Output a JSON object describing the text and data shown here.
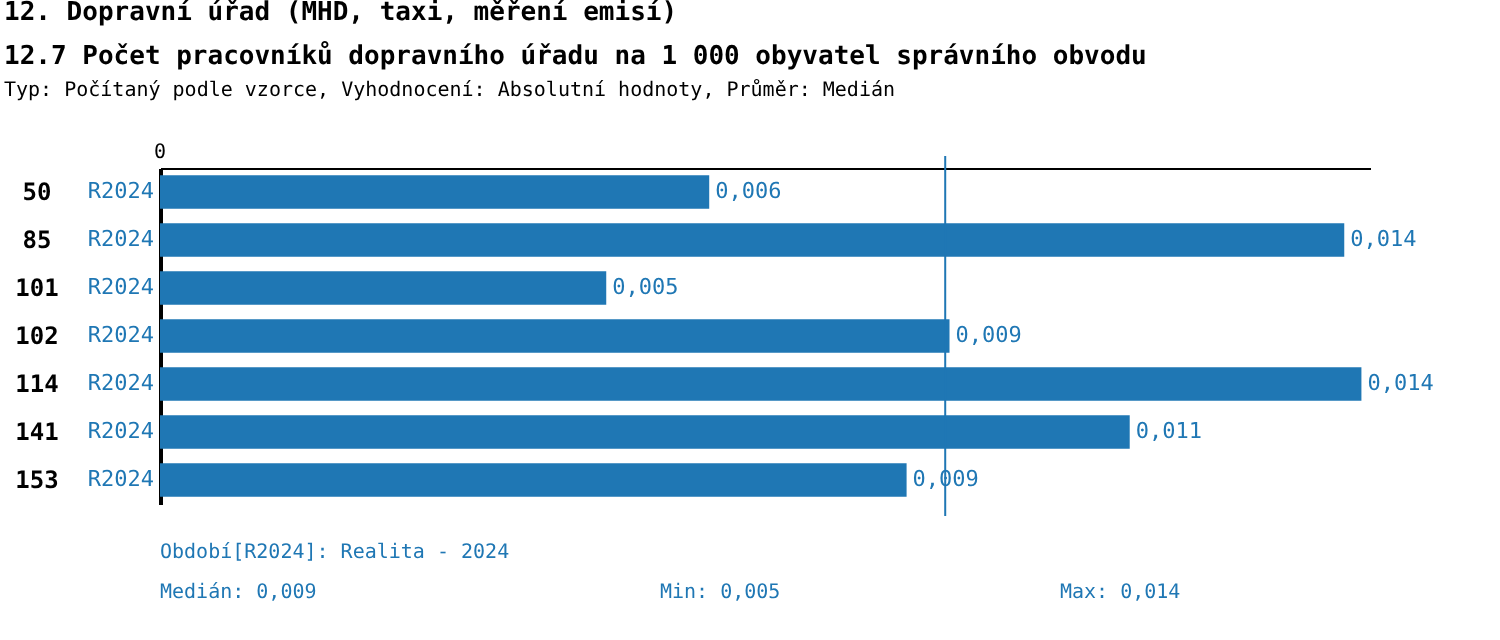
{
  "chart_data": {
    "type": "bar",
    "orientation": "horizontal",
    "title": "12. Dopravní úřad (MHD, taxi, měření emisí)",
    "subtitle": "12.7 Počet pracovníků dopravního úřadu na 1 000 obyvatel správního obvodu",
    "categories": [
      "50",
      "85",
      "101",
      "102",
      "114",
      "141",
      "153"
    ],
    "series": [
      {
        "name": "R2024",
        "color": "#1f77b4",
        "values": [
          0.0064,
          0.0138,
          0.0052,
          0.0092,
          0.014,
          0.0113,
          0.0087
        ],
        "value_labels": [
          "0,006",
          "0,014",
          "0,005",
          "0,009",
          "0,014",
          "0,011",
          "0,009"
        ]
      }
    ],
    "xlim": [
      0,
      0.0141
    ],
    "ref_lines": [
      {
        "axis": "x",
        "value": 0.00915,
        "label": null,
        "color": "#1f77b4"
      }
    ],
    "annotations": [
      "0",
      "Typ: Počítaný podle vzorce, Vyhodnocení: Absolutní hodnoty, Průměr: Medián",
      "Období[R2024]: Realita - 2024",
      "Medián: 0,009",
      "Min: 0,005",
      "Max: 0,014"
    ]
  }
}
